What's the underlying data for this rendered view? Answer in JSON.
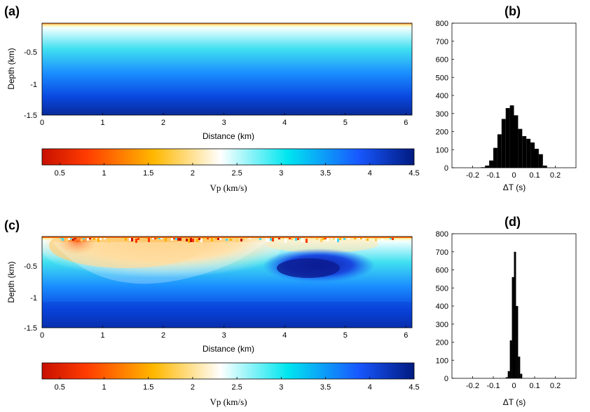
{
  "chart_data": [
    {
      "panel": "(a)",
      "type": "heatmap",
      "xlabel": "Distance (km)",
      "ylabel": "Depth (km)",
      "xlim": [
        0,
        6.1
      ],
      "ylim": [
        -1.5,
        0
      ],
      "x_ticks": [
        "0",
        "1",
        "2",
        "3",
        "4",
        "5",
        "6"
      ],
      "y_ticks": [
        "-0.5",
        "-1",
        "-1.5"
      ],
      "description_values": {
        "vp_top_kms": 2.5,
        "vp_bottom_kms": 4.5
      },
      "colorbar": {
        "label": "Vp (km/s)",
        "min": 0.3,
        "max": 4.5,
        "ticks": [
          "0.5",
          "1",
          "1.5",
          "2",
          "2.5",
          "3",
          "3.5",
          "4",
          "4.5"
        ],
        "colors": [
          "#cc1400",
          "#ff4a00",
          "#ffb000",
          "#ffffff",
          "#00e8f0",
          "#1a60ff",
          "#001a80"
        ]
      }
    },
    {
      "panel": "(b)",
      "type": "bar",
      "xlabel": "ΔT (s)",
      "ylabel": "",
      "xlim": [
        -0.3,
        0.3
      ],
      "ylim": [
        0,
        800
      ],
      "x_ticks": [
        "-0.2",
        "-0.1",
        "0",
        "0.1",
        "0.2"
      ],
      "y_ticks": [
        "0",
        "100",
        "200",
        "300",
        "400",
        "500",
        "600",
        "700",
        "800"
      ],
      "bin_start": -0.16,
      "bin_width": 0.02,
      "values": [
        3,
        12,
        40,
        110,
        185,
        270,
        330,
        345,
        290,
        215,
        175,
        160,
        140,
        105,
        75,
        12
      ]
    },
    {
      "panel": "(c)",
      "type": "heatmap",
      "xlabel": "Distance (km)",
      "ylabel": "Depth (km)",
      "xlim": [
        0,
        6.1
      ],
      "ylim": [
        -1.5,
        0
      ],
      "x_ticks": [
        "0",
        "1",
        "2",
        "3",
        "4",
        "5",
        "6"
      ],
      "y_ticks": [
        "-0.5",
        "-1",
        "-1.5"
      ],
      "colorbar": {
        "label": "Vp (km/s)",
        "min": 0.3,
        "max": 4.5,
        "ticks": [
          "0.5",
          "1",
          "1.5",
          "2",
          "2.5",
          "3",
          "3.5",
          "4",
          "4.5"
        ],
        "colors": [
          "#cc1400",
          "#ff4a00",
          "#ffb000",
          "#ffffff",
          "#00e8f0",
          "#1a60ff",
          "#001a80"
        ]
      }
    },
    {
      "panel": "(d)",
      "type": "bar",
      "xlabel": "ΔT (s)",
      "ylabel": "",
      "xlim": [
        -0.3,
        0.3
      ],
      "ylim": [
        0,
        800
      ],
      "x_ticks": [
        "-0.2",
        "-0.1",
        "0",
        "0.1",
        "0.2"
      ],
      "y_ticks": [
        "0",
        "100",
        "200",
        "300",
        "400",
        "500",
        "600",
        "700",
        "800"
      ],
      "bin_start": -0.04,
      "bin_width": 0.01,
      "values": [
        6,
        40,
        210,
        560,
        700,
        400,
        120,
        25
      ]
    }
  ]
}
